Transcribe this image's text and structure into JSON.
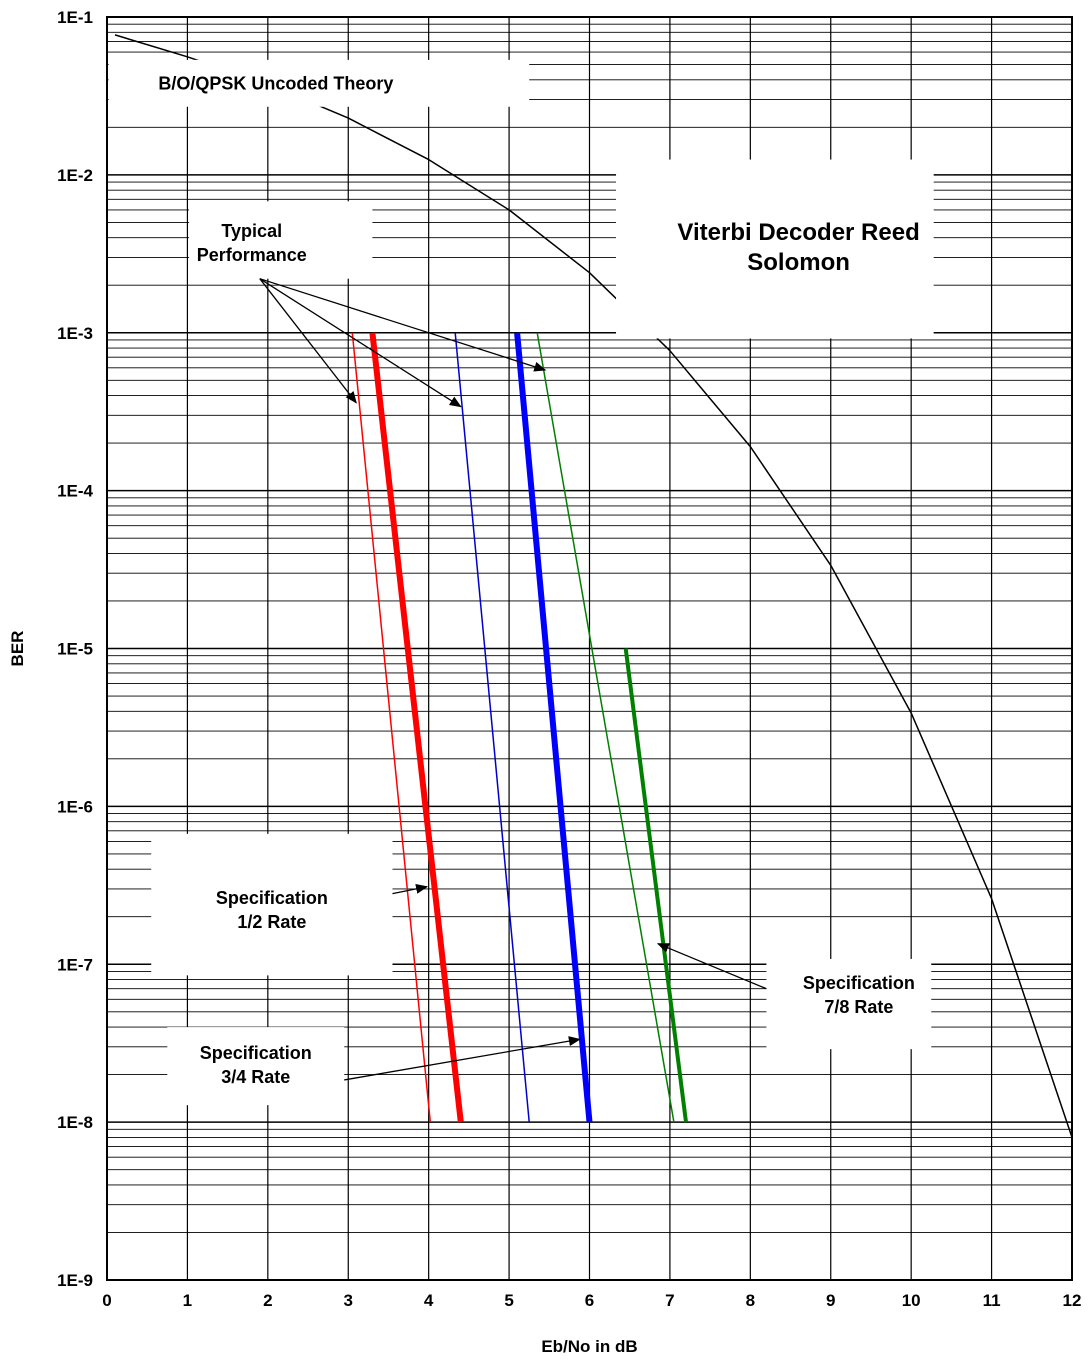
{
  "chart_data": {
    "type": "line",
    "title": "",
    "xlabel": "Eb/No in dB",
    "ylabel": "BER",
    "xlim": [
      0,
      12
    ],
    "ylim": [
      1e-09,
      0.1
    ],
    "y_scale": "log",
    "grid": true,
    "x_ticks": [
      "0",
      "1",
      "2",
      "3",
      "4",
      "5",
      "6",
      "7",
      "8",
      "9",
      "10",
      "11",
      "12"
    ],
    "y_ticks": [
      "1E-9",
      "1E-8",
      "1E-7",
      "1E-6",
      "1E-5",
      "1E-4",
      "1E-3",
      "1E-2",
      "1E-1"
    ],
    "series": [
      {
        "key": "uncoded",
        "color": "#000000",
        "width": 1.5,
        "x": [
          0.1,
          1,
          2,
          3,
          4,
          5,
          6,
          7,
          8,
          9,
          10,
          11,
          12
        ],
        "y": [
          0.077,
          0.056,
          0.0375,
          0.0229,
          0.0125,
          0.006,
          0.0024,
          0.00077,
          0.00019,
          3.36e-05,
          3.9e-06,
          2.6e-07,
          8e-09
        ]
      },
      {
        "key": "half-typical",
        "color": "#ff0000",
        "width": 1.5,
        "x": [
          3.05,
          4.02
        ],
        "y": [
          0.001,
          1e-08
        ]
      },
      {
        "key": "half-spec",
        "color": "#ff0000",
        "width": 6,
        "x": [
          3.3,
          4.4
        ],
        "y": [
          0.001,
          1e-08
        ]
      },
      {
        "key": "threequarter-typical",
        "color": "#0000cc",
        "width": 1.5,
        "x": [
          4.33,
          5.25
        ],
        "y": [
          0.001,
          1e-08
        ]
      },
      {
        "key": "threequarter-spec",
        "color": "#0000ff",
        "width": 6,
        "x": [
          5.1,
          6.0
        ],
        "y": [
          0.001,
          1e-08
        ]
      },
      {
        "key": "seveneighth-typical",
        "color": "#008000",
        "width": 1.5,
        "x": [
          5.35,
          7.05
        ],
        "y": [
          0.001,
          1e-08
        ]
      },
      {
        "key": "seveneighth-spec",
        "color": "#008000",
        "width": 4,
        "x": [
          6.45,
          7.2
        ],
        "y": [
          1e-05,
          1e-08
        ]
      }
    ],
    "annotations": [
      {
        "key": "uncoded-label",
        "lines": [
          "B/O/QPSK Uncoded  Theory"
        ],
        "x": 2.1,
        "y": 0.038,
        "size": "normal",
        "box": [
          0.02,
          5.25,
          0.0535,
          0.027
        ]
      },
      {
        "key": "typical-label",
        "lines": [
          "Typical",
          "Performance"
        ],
        "x": 1.8,
        "y": 0.0037,
        "size": "normal",
        "box": [
          1.02,
          3.3,
          0.0068,
          0.0022
        ]
      },
      {
        "key": "title-label",
        "lines": [
          "Viterbi Decoder Reed",
          "Solomon"
        ],
        "x": 8.6,
        "y": 0.0035,
        "size": "large",
        "box": [
          6.33,
          10.28,
          0.0125,
          0.00092
        ]
      },
      {
        "key": "spec-half-label",
        "lines": [
          "Specification",
          "1/2 Rate"
        ],
        "x": 2.05,
        "y": 2.2e-07,
        "size": "normal",
        "box": [
          0.55,
          3.55,
          6.7e-07,
          8.5e-08
        ]
      },
      {
        "key": "spec-threequarter-label",
        "lines": [
          "Specification",
          "3/4 Rate"
        ],
        "x": 1.85,
        "y": 2.3e-08,
        "size": "normal",
        "box": [
          0.75,
          2.95,
          4e-08,
          1.28e-08
        ]
      },
      {
        "key": "spec-seveneighth-label",
        "lines": [
          "Specification",
          "7/8 Rate"
        ],
        "x": 9.35,
        "y": 6.4e-08,
        "size": "normal",
        "box": [
          8.2,
          10.25,
          1.08e-07,
          2.9e-08
        ]
      }
    ],
    "arrows": [
      {
        "key": "typical-arrow-red",
        "from": [
          1.9,
          0.0022
        ],
        "to": [
          3.1,
          0.00036
        ]
      },
      {
        "key": "typical-arrow-blue",
        "from": [
          1.9,
          0.0022
        ],
        "to": [
          4.4,
          0.00034
        ]
      },
      {
        "key": "typical-arrow-green",
        "from": [
          1.9,
          0.0022
        ],
        "to": [
          5.45,
          0.00058
        ]
      },
      {
        "key": "spec-half-arrow",
        "from": [
          3.55,
          2.8e-07
        ],
        "to": [
          3.98,
          3.1e-07
        ]
      },
      {
        "key": "spec-threequarter-arrow",
        "from": [
          2.95,
          1.85e-08
        ],
        "to": [
          5.88,
          3.35e-08
        ]
      },
      {
        "key": "spec-seveneighth-arrow",
        "from": [
          8.2,
          7e-08
        ],
        "to": [
          6.85,
          1.35e-07
        ]
      }
    ]
  }
}
